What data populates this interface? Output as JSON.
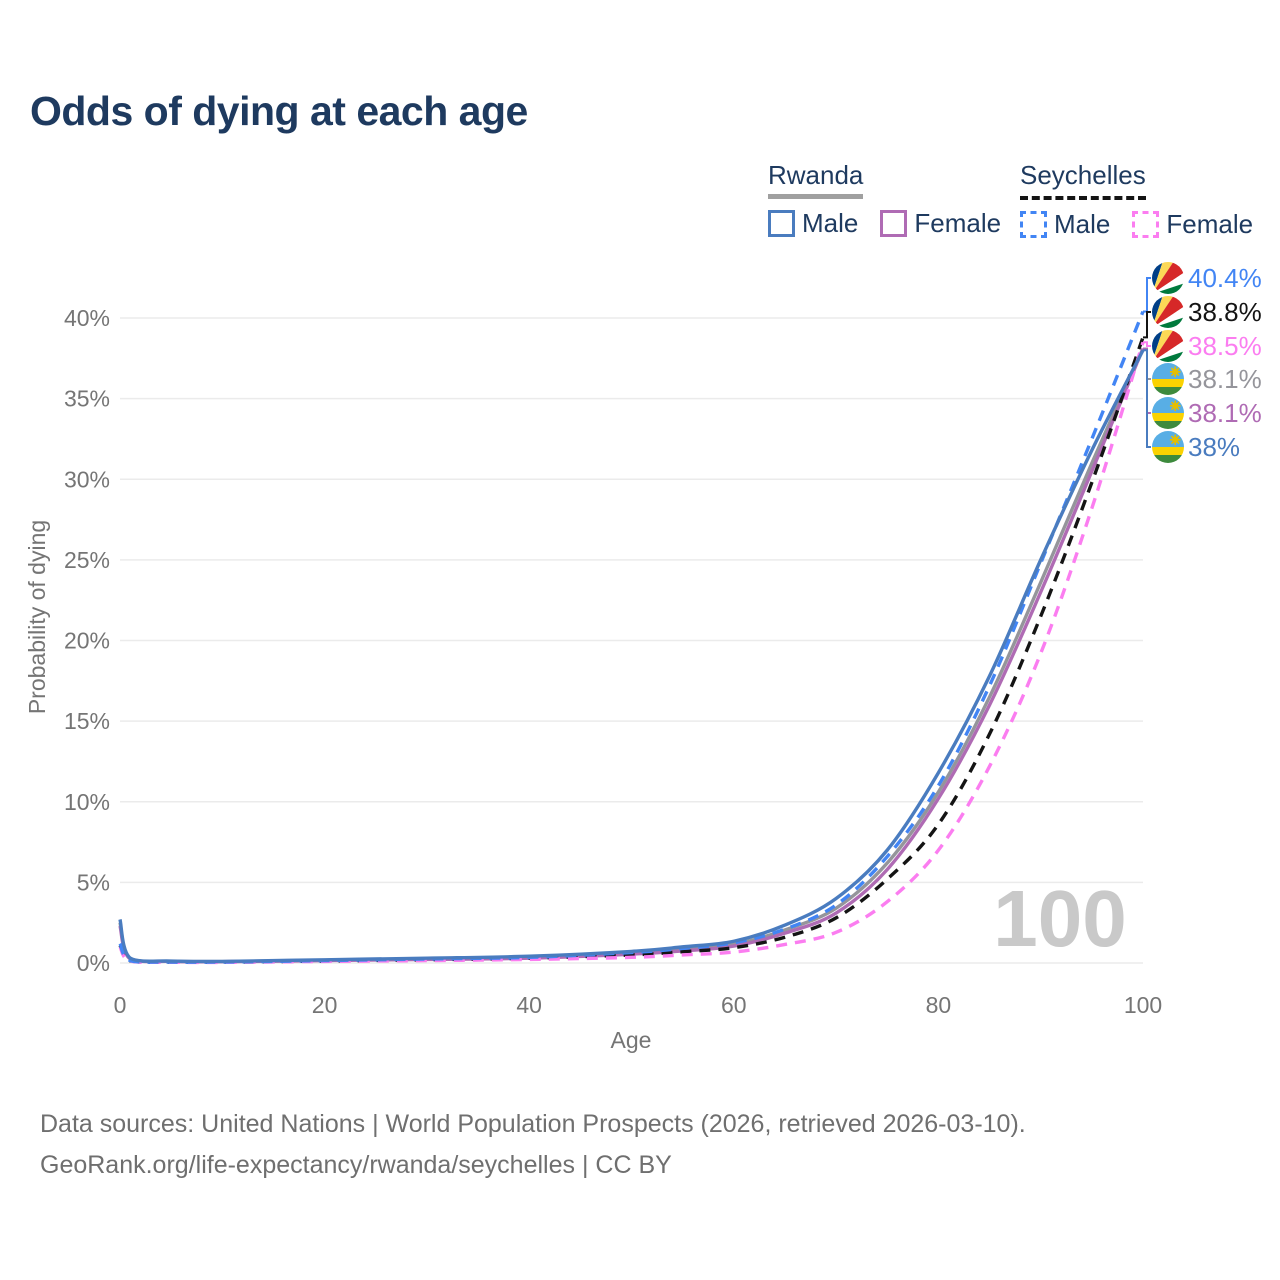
{
  "title": "Odds of dying at each age",
  "legend": {
    "groups": [
      {
        "name": "Rwanda",
        "line_style": "solid",
        "underline_color": "#a0a0a0",
        "items": [
          {
            "label": "Male",
            "color": "#4a7cbf"
          },
          {
            "label": "Female",
            "color": "#af6bb4"
          }
        ]
      },
      {
        "name": "Seychelles",
        "line_style": "dashed",
        "underline_color": "#141414",
        "items": [
          {
            "label": "Male",
            "color": "#4285f4"
          },
          {
            "label": "Female",
            "color": "#fb7df0"
          }
        ]
      }
    ]
  },
  "chart_data": {
    "type": "line",
    "title": "Odds of dying at each age",
    "xlabel": "Age",
    "ylabel": "Probability of dying",
    "xlim": [
      0,
      100
    ],
    "ylim_pct": [
      0,
      42
    ],
    "x_ticks": [
      0,
      20,
      40,
      60,
      80,
      100
    ],
    "y_ticks_pct": [
      0,
      5,
      10,
      15,
      20,
      25,
      30,
      35,
      40
    ],
    "grid": true,
    "legend_position": "top-right",
    "watermark": "100",
    "x": [
      0,
      1,
      5,
      10,
      20,
      30,
      40,
      50,
      55,
      60,
      65,
      70,
      75,
      80,
      85,
      90,
      95,
      100
    ],
    "series": [
      {
        "id": "seychelles-male",
        "name": "Seychelles Male",
        "color": "#4285f4",
        "dash": true,
        "flag": "seychelles",
        "end_label": "40.4%",
        "label_rank": 0,
        "values_pct": [
          1.2,
          0.15,
          0.06,
          0.06,
          0.15,
          0.25,
          0.35,
          0.65,
          0.9,
          1.25,
          2.1,
          3.6,
          6.6,
          11.0,
          17.2,
          24.8,
          32.5,
          40.4
        ]
      },
      {
        "id": "seychelles-both",
        "name": "Seychelles",
        "color": "#141414",
        "dash": true,
        "flag": "seychelles",
        "end_label": "38.8%",
        "label_rank": 1,
        "values_pct": [
          1.1,
          0.13,
          0.05,
          0.05,
          0.12,
          0.2,
          0.3,
          0.5,
          0.7,
          0.95,
          1.6,
          2.8,
          5.2,
          8.6,
          14.2,
          21.5,
          29.8,
          38.8
        ]
      },
      {
        "id": "seychelles-female",
        "name": "Seychelles Female",
        "color": "#fb7df0",
        "dash": true,
        "flag": "seychelles",
        "end_label": "38.5%",
        "label_rank": 2,
        "values_pct": [
          1.0,
          0.12,
          0.05,
          0.04,
          0.1,
          0.15,
          0.22,
          0.35,
          0.5,
          0.68,
          1.15,
          1.9,
          3.8,
          7.0,
          12.2,
          19.2,
          28.2,
          38.5
        ]
      },
      {
        "id": "rwanda-both",
        "name": "Rwanda",
        "color": "#95959b",
        "dash": false,
        "flag": "rwanda",
        "end_label": "38.1%",
        "label_rank": 3,
        "values_pct": [
          2.5,
          0.27,
          0.11,
          0.09,
          0.17,
          0.26,
          0.35,
          0.62,
          0.85,
          1.15,
          2.05,
          3.4,
          6.2,
          10.6,
          16.5,
          23.6,
          31.0,
          38.1
        ]
      },
      {
        "id": "rwanda-female",
        "name": "Rwanda Female",
        "color": "#af6bb4",
        "dash": false,
        "flag": "rwanda",
        "end_label": "38.1%",
        "label_rank": 4,
        "values_pct": [
          2.3,
          0.25,
          0.1,
          0.08,
          0.15,
          0.22,
          0.3,
          0.55,
          0.75,
          1.05,
          1.85,
          3.1,
          5.8,
          10.2,
          16.0,
          23.0,
          30.5,
          38.1
        ]
      },
      {
        "id": "rwanda-male",
        "name": "Rwanda Male",
        "color": "#4a7cbf",
        "dash": false,
        "flag": "rwanda",
        "end_label": "38%",
        "label_rank": 5,
        "values_pct": [
          2.7,
          0.3,
          0.12,
          0.1,
          0.2,
          0.3,
          0.42,
          0.72,
          1.0,
          1.35,
          2.35,
          4.0,
          7.0,
          11.8,
          17.8,
          25.0,
          31.8,
          38.0
        ]
      }
    ],
    "flag_colors": {
      "rwanda": {
        "blue": "#58aee5",
        "yellow": "#fad201",
        "green": "#3d8a3d",
        "sun": "#e5be01"
      },
      "seychelles": {
        "blue": "#003f87",
        "yellow": "#fcd856",
        "red": "#d62828",
        "white": "#ffffff",
        "green": "#007a3d"
      }
    }
  },
  "footer": {
    "line1": "Data sources: United Nations | World Population Prospects (2026, retrieved 2026-03-10).",
    "line2": "GeoRank.org/life-expectancy/rwanda/seychelles | CC BY"
  }
}
